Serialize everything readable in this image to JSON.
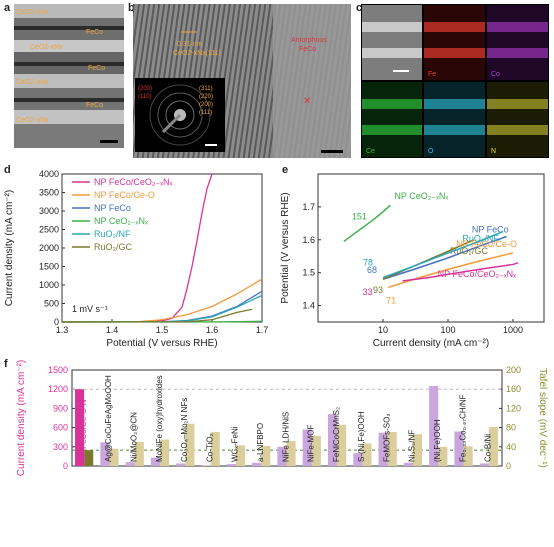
{
  "panels": {
    "a": {
      "label": "a",
      "annotations": [
        "CeO2-xNx",
        "FeCo",
        "CeO2-xNx",
        "FeCo",
        "CeO2-xNx",
        "FeCo",
        "CeO2-xNx"
      ],
      "scale_bar": true
    },
    "b": {
      "label": "b",
      "fringe_label_line1": "0.31 nm",
      "fringe_label_line2": "CeO2-xNx(111)",
      "amorphous_label_line1": "Amorphous",
      "amorphous_label_line2": "FeCo",
      "saed_left": [
        "(200)",
        "(110)"
      ],
      "saed_right": [
        "(311)",
        "(220)",
        "(200)",
        "(111)"
      ]
    },
    "c": {
      "label": "c",
      "maps": [
        {
          "name": "Fe",
          "color": "#e23b2e"
        },
        {
          "name": "Co",
          "color": "#b33ed1"
        },
        {
          "name": "Ce",
          "color": "#2fbe3c"
        },
        {
          "name": "O",
          "color": "#2fc2d8"
        },
        {
          "name": "N",
          "color": "#e8e43a"
        }
      ]
    },
    "d": {
      "label": "d",
      "annotation": "1 mV s-1"
    },
    "e": {
      "label": "e"
    },
    "f": {
      "label": "f"
    }
  },
  "chart_data": [
    {
      "id": "d",
      "type": "line",
      "xlabel": "Potential (V versus RHE)",
      "ylabel": "Current density (mA cm-2)",
      "xlim": [
        1.3,
        1.7
      ],
      "ylim": [
        0,
        4000
      ],
      "xticks": [
        1.3,
        1.4,
        1.5,
        1.6,
        1.7
      ],
      "yticks": [
        0,
        500,
        1000,
        1500,
        2000,
        2500,
        3000,
        3500,
        4000
      ],
      "legend": "top-left",
      "series": [
        {
          "name": "NP FeCo/CeO2-xNx",
          "color": "#d9339a",
          "x": [
            1.3,
            1.45,
            1.5,
            1.52,
            1.54,
            1.55,
            1.56,
            1.57,
            1.58,
            1.59,
            1.6
          ],
          "y": [
            0,
            5,
            30,
            100,
            400,
            900,
            1500,
            2200,
            2950,
            3600,
            4000
          ]
        },
        {
          "name": "NP FeCo/Ce-O",
          "color": "#f39a3b",
          "x": [
            1.3,
            1.45,
            1.5,
            1.55,
            1.6,
            1.65,
            1.7
          ],
          "y": [
            0,
            5,
            60,
            200,
            420,
            760,
            1160
          ]
        },
        {
          "name": "NP FeCo",
          "color": "#4472c4",
          "x": [
            1.3,
            1.5,
            1.55,
            1.6,
            1.65,
            1.7
          ],
          "y": [
            0,
            5,
            40,
            160,
            420,
            830
          ]
        },
        {
          "name": "NP CeO2-xNx",
          "color": "#3cb04a",
          "x": [
            1.3,
            1.6,
            1.65,
            1.7
          ],
          "y": [
            0,
            2,
            8,
            20
          ]
        },
        {
          "name": "RuO2/NF",
          "color": "#2aa7b8",
          "x": [
            1.3,
            1.5,
            1.55,
            1.6,
            1.65,
            1.7
          ],
          "y": [
            0,
            5,
            30,
            140,
            400,
            720
          ]
        },
        {
          "name": "RuO2/GC",
          "color": "#7a7a2c",
          "x": [
            1.3,
            1.55,
            1.6,
            1.65,
            1.68
          ],
          "y": [
            0,
            5,
            60,
            260,
            340
          ]
        }
      ]
    },
    {
      "id": "e",
      "type": "line",
      "xlabel": "Current density (mA cm-2)",
      "ylabel": "Potential (V versus RHE)",
      "xscale": "log",
      "xlim": [
        1,
        3000
      ],
      "ylim": [
        1.35,
        1.8
      ],
      "xticks": [
        10,
        100,
        1000
      ],
      "yticks": [
        1.4,
        1.5,
        1.6,
        1.7
      ],
      "series": [
        {
          "name": "NP CeO2-xNx",
          "color": "#3cb04a",
          "tafel": "151",
          "x": [
            2.5,
            4,
            7,
            10,
            13
          ],
          "y": [
            1.595,
            1.625,
            1.66,
            1.685,
            1.705
          ]
        },
        {
          "name": "NP FeCo",
          "color": "#4472c4",
          "tafel": "68",
          "x": [
            10,
            30,
            100,
            300,
            800
          ],
          "y": [
            1.48,
            1.51,
            1.545,
            1.58,
            1.61
          ]
        },
        {
          "name": "RuO2/GC",
          "color": "#7a7a2c",
          "tafel": "93",
          "x": [
            10,
            30,
            100,
            250
          ],
          "y": [
            1.48,
            1.52,
            1.565,
            1.6
          ]
        },
        {
          "name": "RuO2/NF",
          "color": "#2aa7b8",
          "tafel": "78",
          "x": [
            10,
            30,
            100,
            300,
            700
          ],
          "y": [
            1.485,
            1.52,
            1.56,
            1.595,
            1.625
          ]
        },
        {
          "name": "NP FeCo/Ce-O",
          "color": "#f39a3b",
          "tafel": "71",
          "x": [
            12,
            30,
            100,
            300,
            1000
          ],
          "y": [
            1.455,
            1.48,
            1.51,
            1.535,
            1.56
          ]
        },
        {
          "name": "NP FeCo/CeO2-xNx",
          "color": "#d9339a",
          "tafel": "33",
          "x": [
            20,
            50,
            100,
            300,
            1000,
            1200
          ],
          "y": [
            1.475,
            1.485,
            1.495,
            1.51,
            1.525,
            1.53
          ]
        }
      ]
    },
    {
      "id": "f",
      "type": "bar",
      "ylabel": "Current density (mA cm-2)",
      "y2label": "Tafel slope (mV dec-1)",
      "ylim": [
        0,
        1500
      ],
      "y2lim": [
        0,
        200
      ],
      "yticks": [
        0,
        300,
        600,
        900,
        1200,
        1500
      ],
      "y2ticks": [
        0,
        40,
        80,
        120,
        160,
        200
      ],
      "ref_current": 1200,
      "ref_tafel": 33,
      "categories": [
        "NP FeCo/Ce-O-N",
        "Ag@CoCuFeAgMoOOH",
        "Ni/MoO2@CN",
        "MoNiFe (oxy)hydroxides",
        "Co3O4-Mo2N NFs",
        "Co-TiO2",
        "WCx-FeNi",
        "a-LNFBPO",
        "NiFe LDH/NiS",
        "NiFe-MOF",
        "FeNiCoCrMnS2",
        "S-(Ni,Fe)OOH",
        "FeMOFs-SO3",
        "Ni3S2/NF",
        "(Ni,Fe)OOH",
        "Fe0.33Co0.67CH/NF",
        "Co-B/Ni"
      ],
      "category_labels": [
        "NP FeCo/Ce-O-N",
        "Ag@CoCuFeAgMoOOH",
        "Ni/MoO₂@CN",
        "MoNiFe (oxy)hydroxides",
        "Co₃O₄–Mo₂N NFs",
        "Co-TiO₂",
        "WCₓ-FeNi",
        "a-LNFBPO",
        "NiFe LDH/NiS",
        "NiFe-MOF",
        "FeNiCoCrMnS₂",
        "S-(Ni,Fe)OOH",
        "FeMOFs-SO₃",
        "Ni₃S₂/NF",
        "(Ni,Fe)OOH",
        "Fe₀.₃₃Co₀.₆₇CH/NF",
        "Co-B/Ni"
      ],
      "current": [
        1200,
        370,
        60,
        130,
        40,
        10,
        30,
        50,
        300,
        570,
        810,
        200,
        520,
        50,
        1250,
        540,
        40
      ],
      "tafel": [
        33,
        36,
        50,
        55,
        88,
        71,
        43,
        42,
        52,
        63,
        86,
        47,
        71,
        66,
        40,
        41,
        81
      ]
    }
  ]
}
